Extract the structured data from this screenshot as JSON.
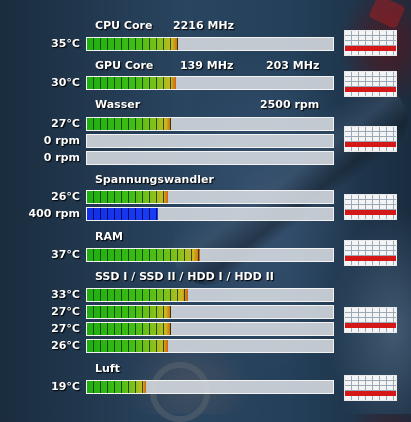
{
  "sections": {
    "cpu": {
      "title": "CPU Core",
      "speed": "2216 MHz",
      "rows": [
        {
          "label": "35°C",
          "level": 0.37,
          "style": "green"
        }
      ]
    },
    "gpu": {
      "title": "GPU Core",
      "speed_core": "139 MHz",
      "speed_mem": "203 MHz",
      "rows": [
        {
          "label": "30°C",
          "level": 0.36,
          "style": "green"
        }
      ]
    },
    "water": {
      "title": "Wasser",
      "speed": "2500 rpm",
      "rows": [
        {
          "label": "27°C",
          "level": 0.34,
          "style": "green"
        },
        {
          "label": "0 rpm",
          "level": 0,
          "style": "empty"
        },
        {
          "label": "0 rpm",
          "level": 0,
          "style": "empty"
        }
      ]
    },
    "vrm": {
      "title": "Spannungswandler",
      "rows": [
        {
          "label": "26°C",
          "level": 0.33,
          "style": "green"
        },
        {
          "label": "400 rpm",
          "level": 0.29,
          "style": "blue"
        }
      ]
    },
    "ram": {
      "title": "RAM",
      "rows": [
        {
          "label": "37°C",
          "level": 0.46,
          "style": "green"
        }
      ]
    },
    "disks": {
      "title": "SSD I / SSD II / HDD I / HDD II",
      "rows": [
        {
          "label": "33°C",
          "level": 0.41,
          "style": "green"
        },
        {
          "label": "27°C",
          "level": 0.34,
          "style": "green"
        },
        {
          "label": "27°C",
          "level": 0.34,
          "style": "green"
        },
        {
          "label": "26°C",
          "level": 0.33,
          "style": "green"
        }
      ]
    },
    "air": {
      "title": "Luft",
      "rows": [
        {
          "label": "19°C",
          "level": 0.24,
          "style": "green"
        }
      ]
    }
  },
  "colors": {
    "bar_fill": "#3fb815",
    "bar_fill_end": "#d25f10",
    "fan_fill": "#1a3cf4",
    "bar_background": "#d7dce1",
    "graph_line": "#d41818"
  }
}
